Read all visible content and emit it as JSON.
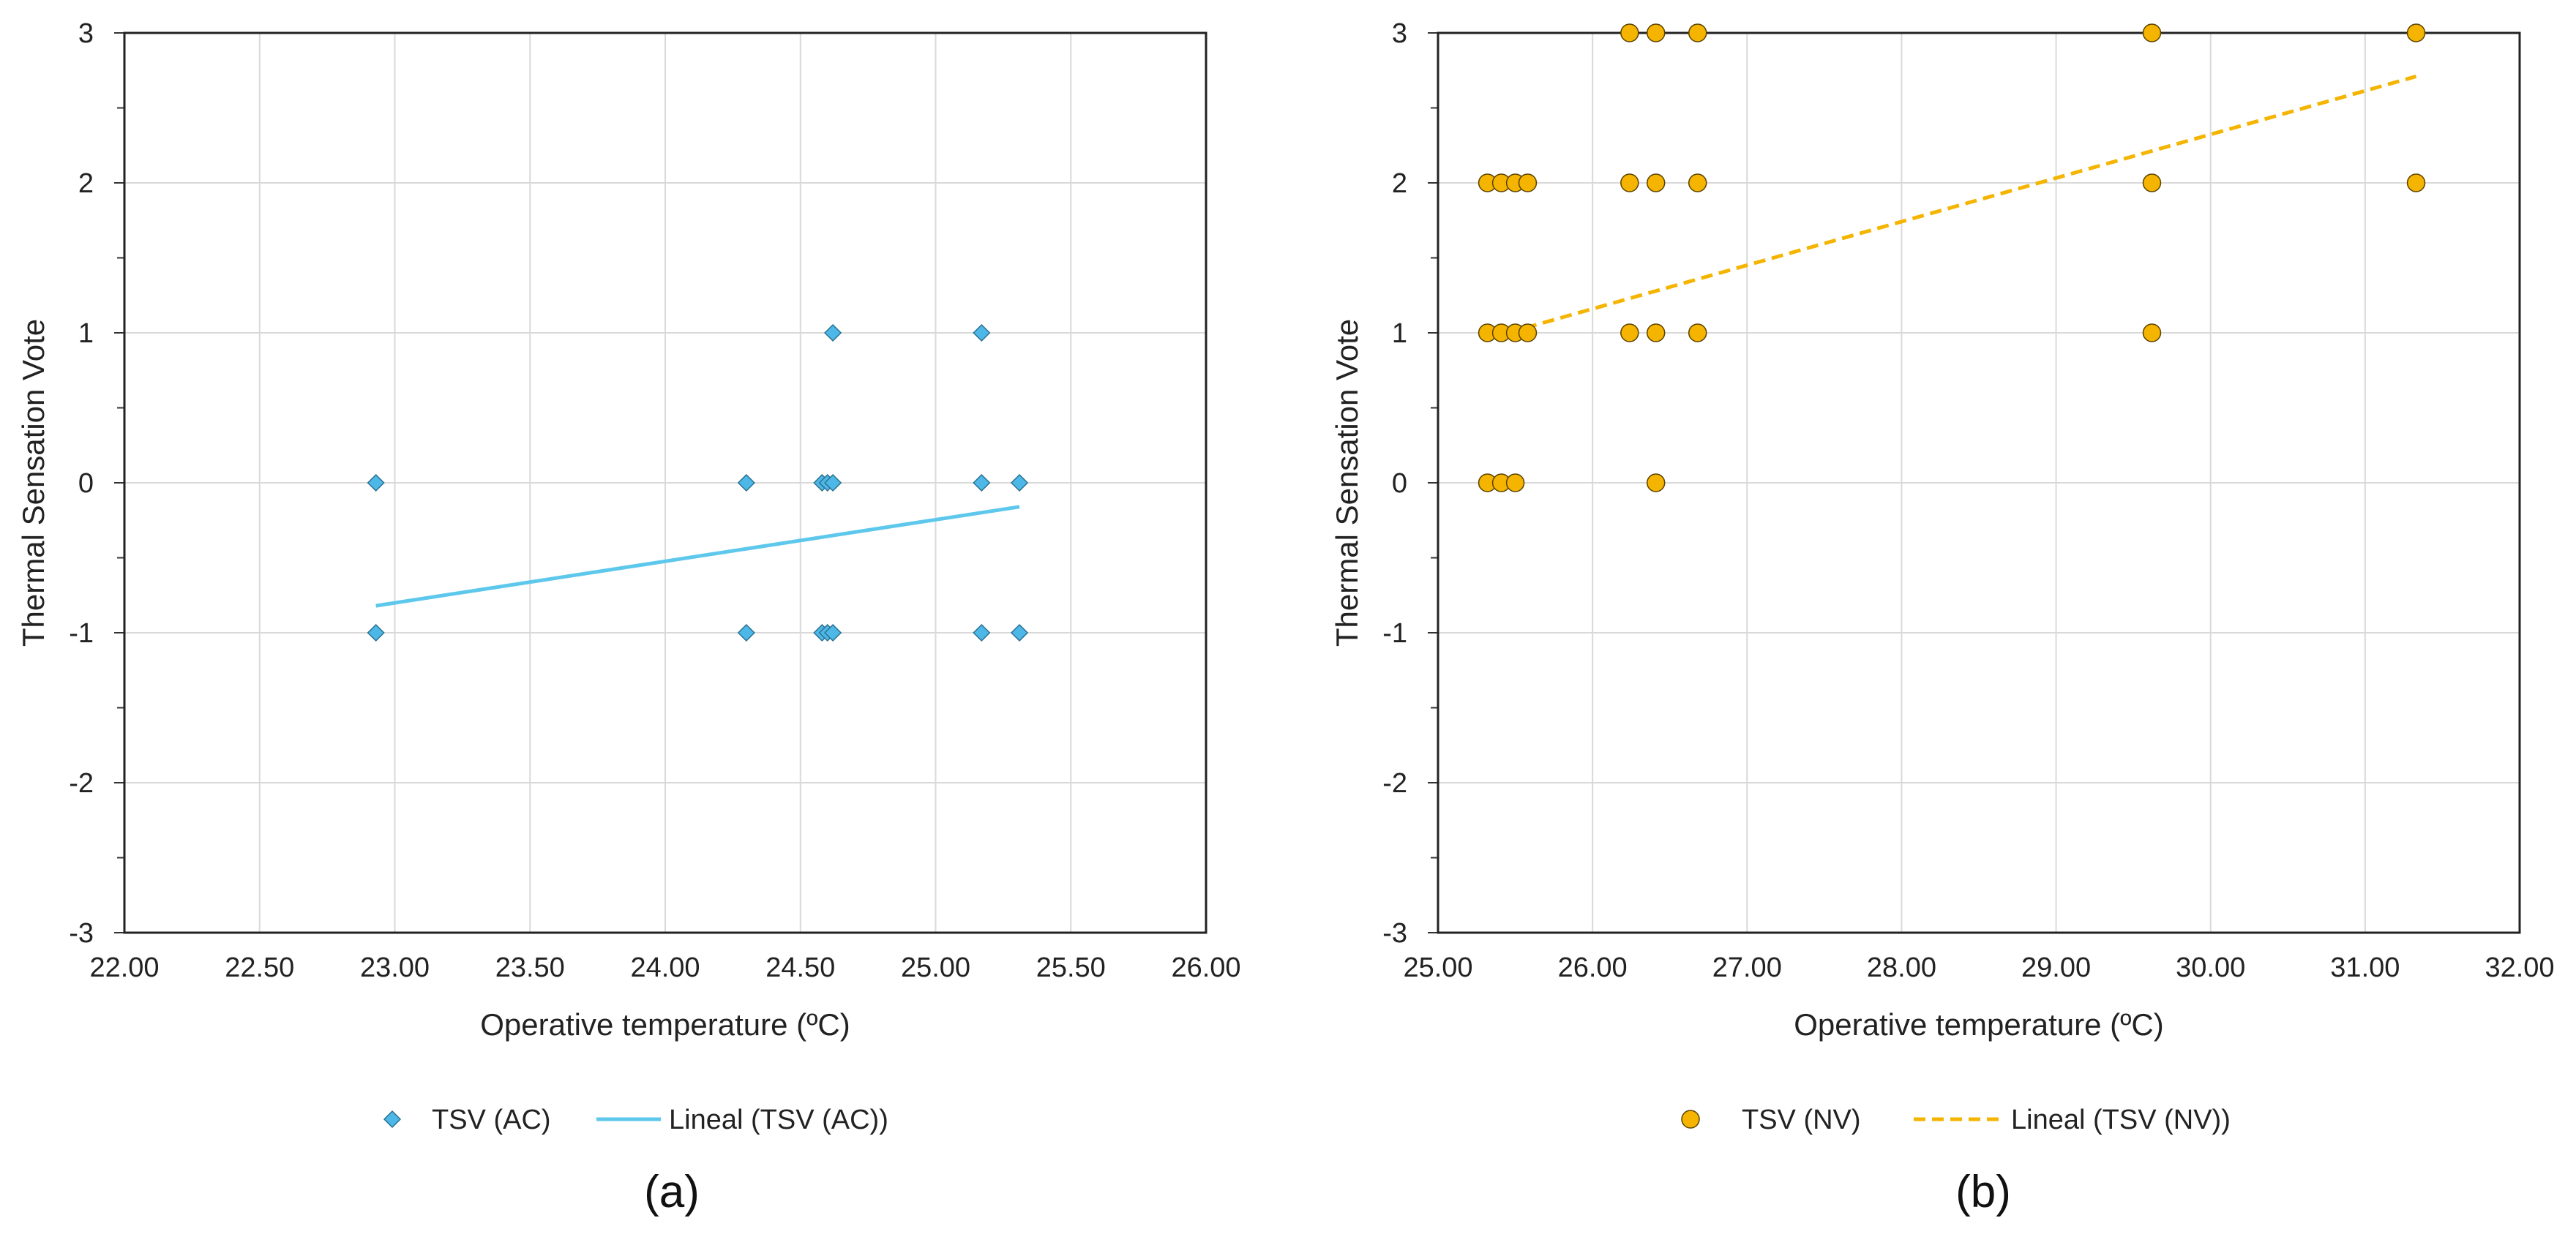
{
  "chart_data": [
    {
      "type": "scatter",
      "caption": "(a)",
      "xlabel": "Operative temperature (ºC)",
      "ylabel": "Thermal Sensation Vote",
      "xlim": [
        22,
        26
      ],
      "ylim": [
        -3,
        3
      ],
      "xticks": [
        "22.00",
        "22.50",
        "23.00",
        "23.50",
        "24.00",
        "24.50",
        "25.00",
        "25.50",
        "26.00"
      ],
      "yticks": [
        "-3",
        "-2",
        "-1",
        "0",
        "1",
        "2",
        "3"
      ],
      "grid": true,
      "marker": "diamond",
      "color": "#4db8e8",
      "series": [
        {
          "name": "TSV (AC)",
          "points": [
            [
              22.93,
              0
            ],
            [
              22.93,
              -1
            ],
            [
              24.3,
              0
            ],
            [
              24.3,
              -1
            ],
            [
              24.58,
              0
            ],
            [
              24.6,
              0
            ],
            [
              24.62,
              0
            ],
            [
              24.62,
              1
            ],
            [
              24.58,
              -1
            ],
            [
              24.6,
              -1
            ],
            [
              24.62,
              -1
            ],
            [
              25.17,
              1
            ],
            [
              25.17,
              0
            ],
            [
              25.17,
              -1
            ],
            [
              25.31,
              0
            ],
            [
              25.31,
              -1
            ]
          ]
        }
      ],
      "trendline": {
        "name": "Lineal (TSV (AC))",
        "points": [
          [
            22.93,
            -0.82
          ],
          [
            25.31,
            -0.16
          ]
        ],
        "color": "#5ec8ec",
        "style": "solid"
      },
      "legend": [
        "TSV (AC)",
        "Lineal (TSV (AC))"
      ]
    },
    {
      "type": "scatter",
      "caption": "(b)",
      "xlabel": "Operative temperature (ºC)",
      "ylabel": "Thermal Sensation Vote",
      "xlim": [
        25,
        32
      ],
      "ylim": [
        -3,
        3
      ],
      "xticks": [
        "25.00",
        "26.00",
        "27.00",
        "28.00",
        "29.00",
        "30.00",
        "31.00",
        "32.00"
      ],
      "yticks": [
        "-3",
        "-2",
        "-1",
        "0",
        "1",
        "2",
        "3"
      ],
      "grid": true,
      "marker": "circle",
      "color": "#f5b400",
      "series": [
        {
          "name": "TSV (NV)",
          "points": [
            [
              25.32,
              2
            ],
            [
              25.41,
              2
            ],
            [
              25.5,
              2
            ],
            [
              25.58,
              2
            ],
            [
              25.32,
              1
            ],
            [
              25.41,
              1
            ],
            [
              25.5,
              1
            ],
            [
              25.58,
              1
            ],
            [
              25.32,
              0
            ],
            [
              25.41,
              0
            ],
            [
              25.5,
              0
            ],
            [
              26.24,
              3
            ],
            [
              26.41,
              3
            ],
            [
              26.68,
              3
            ],
            [
              26.24,
              2
            ],
            [
              26.41,
              2
            ],
            [
              26.68,
              2
            ],
            [
              26.24,
              1
            ],
            [
              26.41,
              1
            ],
            [
              26.68,
              1
            ],
            [
              26.41,
              0
            ],
            [
              29.62,
              3
            ],
            [
              29.62,
              2
            ],
            [
              29.62,
              1
            ],
            [
              31.33,
              3
            ],
            [
              31.33,
              2
            ]
          ]
        }
      ],
      "trendline": {
        "name": "Lineal (TSV (NV))",
        "points": [
          [
            25.45,
            1.0
          ],
          [
            31.33,
            2.71
          ]
        ],
        "color": "#f5b400",
        "style": "dashed"
      },
      "legend": [
        "TSV (NV)",
        "Lineal (TSV (NV))"
      ]
    }
  ]
}
